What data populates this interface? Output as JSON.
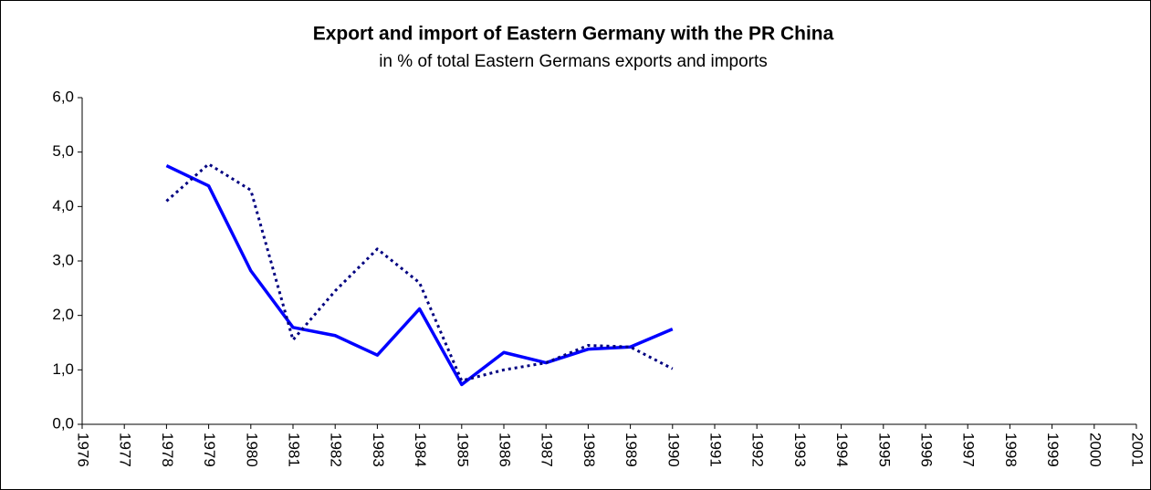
{
  "chart_data": {
    "type": "line",
    "title": "Export and import of Eastern Germany with the PR China",
    "subtitle": "in % of total Eastern Germans exports and imports",
    "categories": [
      "1976",
      "1977",
      "1978",
      "1979",
      "1980",
      "1981",
      "1982",
      "1983",
      "1984",
      "1985",
      "1986",
      "1987",
      "1988",
      "1989",
      "1990",
      "1991",
      "1992",
      "1993",
      "1994",
      "1995",
      "1996",
      "1997",
      "1998",
      "1999",
      "2000",
      "2001"
    ],
    "series": [
      {
        "color": "#0000ff",
        "style": "solid",
        "values": [
          null,
          null,
          4.75,
          4.38,
          2.82,
          1.78,
          1.63,
          1.27,
          2.12,
          0.73,
          1.32,
          1.13,
          1.38,
          1.42,
          1.75,
          null,
          null,
          null,
          null,
          null,
          null,
          null,
          null,
          null,
          null,
          null
        ]
      },
      {
        "color": "#000080",
        "style": "dotted",
        "values": [
          null,
          null,
          4.1,
          4.78,
          4.3,
          1.55,
          2.45,
          3.22,
          2.6,
          0.8,
          1.0,
          1.13,
          1.45,
          1.42,
          1.02,
          null,
          null,
          null,
          null,
          null,
          null,
          null,
          null,
          null,
          null,
          null
        ]
      }
    ],
    "ylim": [
      0,
      6
    ],
    "yticks": [
      {
        "value": 0,
        "label": "0,0"
      },
      {
        "value": 1,
        "label": "1,0"
      },
      {
        "value": 2,
        "label": "2,0"
      },
      {
        "value": 3,
        "label": "3,0"
      },
      {
        "value": 4,
        "label": "4,0"
      },
      {
        "value": 5,
        "label": "5,0"
      },
      {
        "value": 6,
        "label": "6,0"
      }
    ],
    "grid": false
  }
}
